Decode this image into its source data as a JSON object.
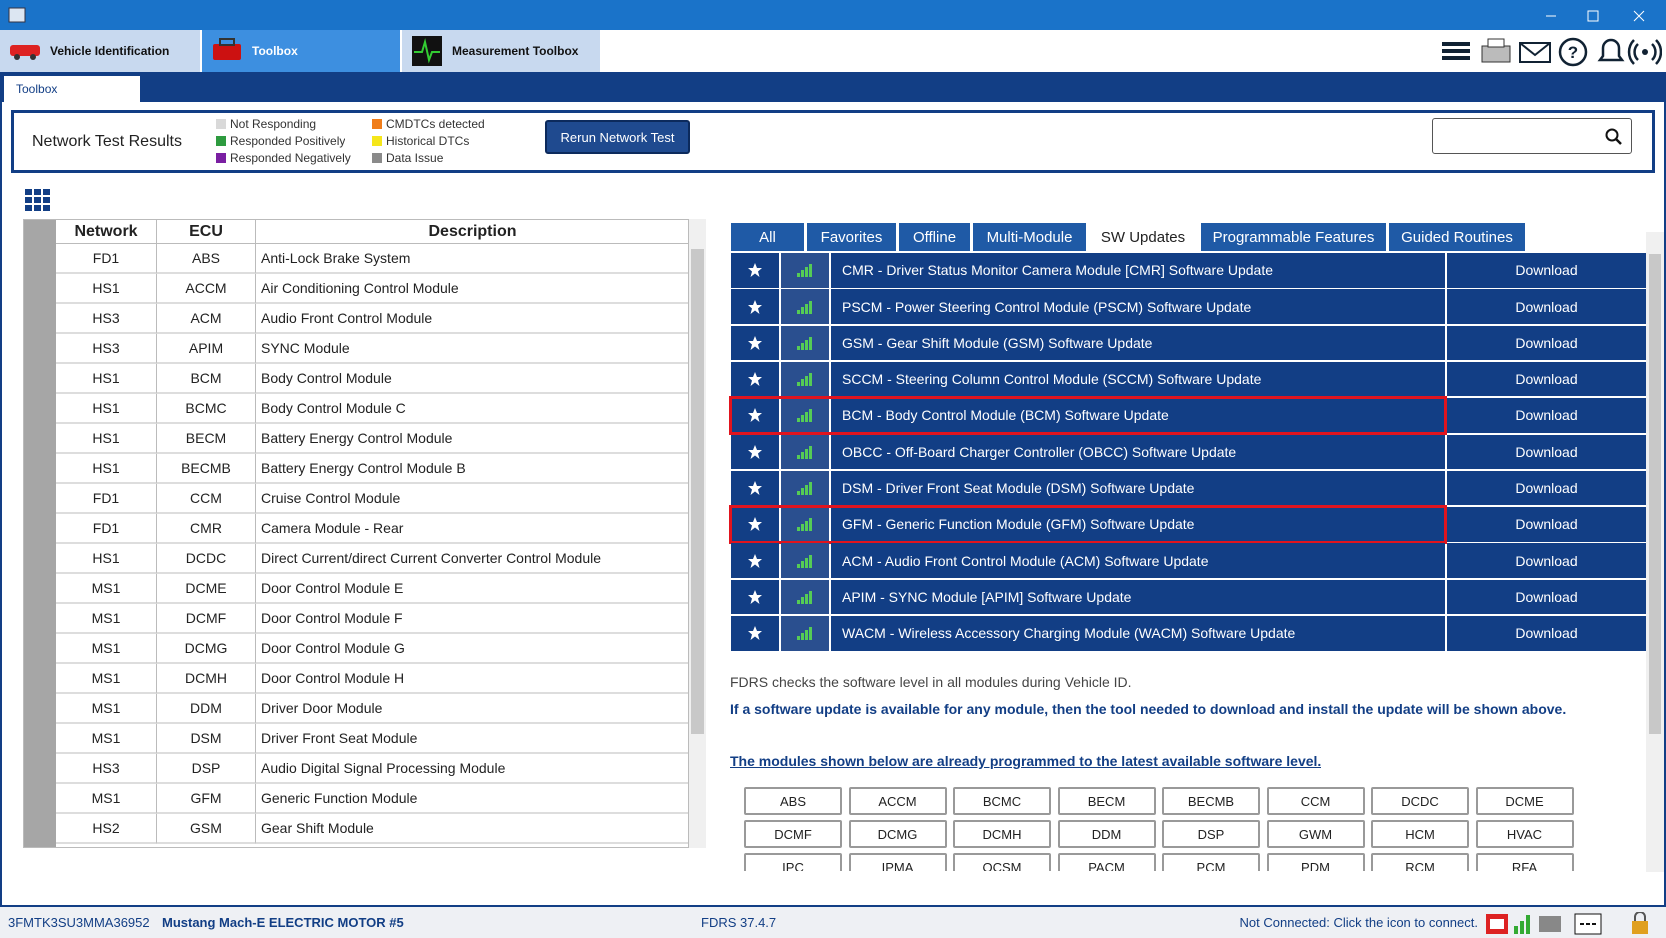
{
  "window": {
    "tabs": [
      "Vehicle Identification",
      "Toolbox",
      "Measurement Toolbox"
    ],
    "subtab": "Toolbox"
  },
  "network_test": {
    "title": "Network Test Results",
    "legend": [
      {
        "label": "Not Responding",
        "color": "#d9d9d9"
      },
      {
        "label": "Responded Positively",
        "color": "#2e9b3f"
      },
      {
        "label": "Responded Negatively",
        "color": "#7a1fa2"
      },
      {
        "label": "CMDTCs detected",
        "color": "#f07d1a"
      },
      {
        "label": "Historical DTCs",
        "color": "#f5e61a"
      },
      {
        "label": "Data Issue",
        "color": "#8a8a8a"
      }
    ],
    "button": "Rerun Network Test"
  },
  "ecu_table": {
    "headers": [
      "Network",
      "ECU",
      "Description"
    ],
    "rows": [
      [
        "FD1",
        "ABS",
        "Anti-Lock Brake System"
      ],
      [
        "HS1",
        "ACCM",
        "Air Conditioning Control Module"
      ],
      [
        "HS3",
        "ACM",
        "Audio Front Control Module"
      ],
      [
        "HS3",
        "APIM",
        "SYNC Module"
      ],
      [
        "HS1",
        "BCM",
        "Body Control Module"
      ],
      [
        "HS1",
        "BCMC",
        "Body Control Module C"
      ],
      [
        "HS1",
        "BECM",
        "Battery Energy Control Module"
      ],
      [
        "HS1",
        "BECMB",
        "Battery Energy Control Module B"
      ],
      [
        "FD1",
        "CCM",
        "Cruise Control Module"
      ],
      [
        "FD1",
        "CMR",
        "Camera Module - Rear"
      ],
      [
        "HS1",
        "DCDC",
        "Direct Current/direct Current Converter Control Module"
      ],
      [
        "MS1",
        "DCME",
        "Door Control Module E"
      ],
      [
        "MS1",
        "DCMF",
        "Door Control Module F"
      ],
      [
        "MS1",
        "DCMG",
        "Door Control Module G"
      ],
      [
        "MS1",
        "DCMH",
        "Door Control Module H"
      ],
      [
        "MS1",
        "DDM",
        "Driver Door Module"
      ],
      [
        "MS1",
        "DSM",
        "Driver Front Seat Module"
      ],
      [
        "HS3",
        "DSP",
        "Audio Digital Signal Processing Module"
      ],
      [
        "MS1",
        "GFM",
        "Generic Function Module"
      ],
      [
        "HS2",
        "GSM",
        "Gear Shift Module"
      ]
    ]
  },
  "filter_tabs": [
    "All",
    "Favorites",
    "Offline",
    "Multi-Module",
    "SW Updates",
    "Programmable Features",
    "Guided Routines"
  ],
  "updates": [
    {
      "name": "CMR - Driver Status Monitor Camera Module [CMR] Software Update",
      "action": "Download"
    },
    {
      "name": "PSCM - Power Steering Control Module (PSCM) Software Update",
      "action": "Download"
    },
    {
      "name": "GSM - Gear Shift Module (GSM) Software Update",
      "action": "Download"
    },
    {
      "name": "SCCM - Steering Column Control Module (SCCM) Software Update",
      "action": "Download"
    },
    {
      "name": "BCM - Body Control Module (BCM) Software Update",
      "action": "Download"
    },
    {
      "name": "OBCC - Off-Board Charger Controller (OBCC) Software Update",
      "action": "Download"
    },
    {
      "name": "DSM - Driver Front Seat Module (DSM) Software Update",
      "action": "Download"
    },
    {
      "name": "GFM - Generic Function Module (GFM) Software Update",
      "action": "Download"
    },
    {
      "name": "ACM - Audio Front Control Module (ACM) Software Update",
      "action": "Download"
    },
    {
      "name": "APIM - SYNC Module [APIM] Software Update",
      "action": "Download"
    },
    {
      "name": "WACM - Wireless Accessory Charging Module (WACM) Software Update",
      "action": "Download"
    }
  ],
  "info": {
    "line1": "FDRS checks the software level in all modules during Vehicle ID.",
    "line2": "If a software update is available for any module, then the tool needed to download and install the update will be shown above.",
    "link": "The modules shown below are already programmed to the latest available software level."
  },
  "modules": [
    "ABS",
    "ACCM",
    "BCMC",
    "BECM",
    "BECMB",
    "CCM",
    "DCDC",
    "DCME",
    "DCMF",
    "DCMG",
    "DCMH",
    "DDM",
    "DSP",
    "GWM",
    "HCM",
    "HVAC",
    "IPC",
    "IPMA",
    "OCSM",
    "PACM",
    "PCM",
    "PDM",
    "RCM",
    "RFA"
  ],
  "status": {
    "vin": "3FMTK3SU3MMA36952",
    "vehicle": "Mustang Mach-E ELECTRIC MOTOR #5",
    "version": "FDRS 37.4.7",
    "connection": "Not Connected: Click the icon to connect."
  }
}
